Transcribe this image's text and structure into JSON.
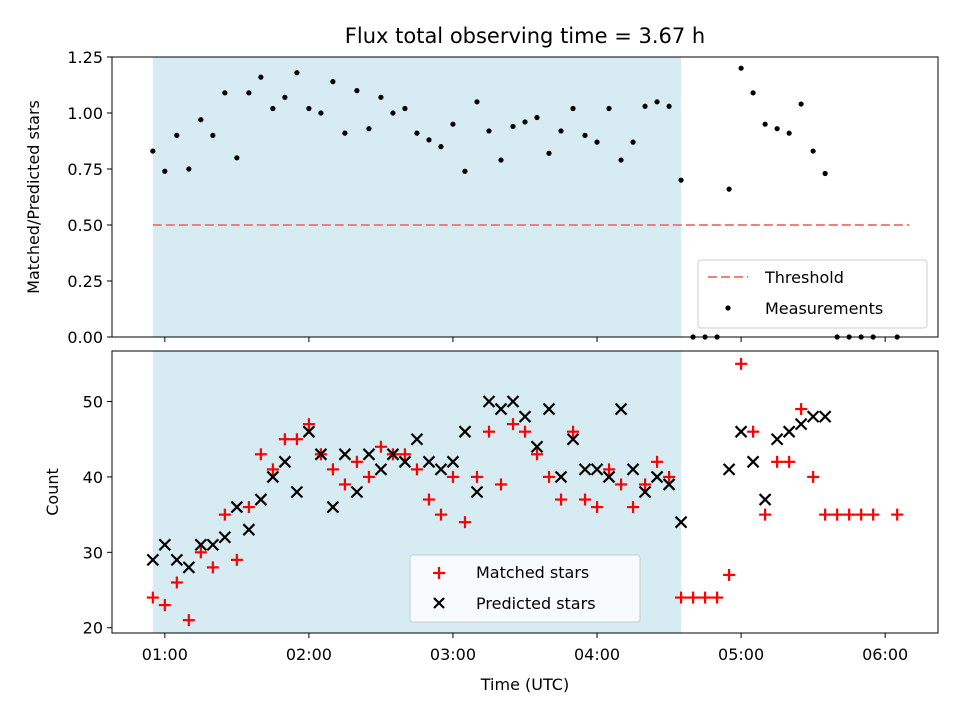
{
  "chart_data": {
    "type": "scatter",
    "title": "Flux total observing time = 3.67 h",
    "xlabel": "Time (UTC)",
    "x_ticks": [
      "01:00",
      "02:00",
      "03:00",
      "04:00",
      "05:00",
      "06:00"
    ],
    "x_range": [
      "00:38",
      "06:22"
    ],
    "highlight_span": [
      "00:55",
      "04:35"
    ],
    "highlight_color": "#add8e6",
    "panels": [
      {
        "ylabel": "Matched/Predicted stars",
        "ylim": [
          0,
          1.25
        ],
        "y_ticks": [
          "0.00",
          "0.25",
          "0.50",
          "0.75",
          "1.00",
          "1.25"
        ],
        "threshold": {
          "name": "Threshold",
          "value": 0.5,
          "x_from": "00:55",
          "x_to": "06:10",
          "color": "#f08080",
          "style": "dashed"
        },
        "legend": {
          "placement": "lower-right",
          "entries": [
            "Threshold",
            "Measurements"
          ]
        },
        "series": [
          {
            "name": "Measurements",
            "marker": "dot",
            "color": "#000000",
            "points": [
              [
                "00:55",
                0.83
              ],
              [
                "01:00",
                0.74
              ],
              [
                "01:05",
                0.9
              ],
              [
                "01:10",
                0.75
              ],
              [
                "01:15",
                0.97
              ],
              [
                "01:20",
                0.9
              ],
              [
                "01:25",
                1.09
              ],
              [
                "01:30",
                0.8
              ],
              [
                "01:35",
                1.09
              ],
              [
                "01:40",
                1.16
              ],
              [
                "01:45",
                1.02
              ],
              [
                "01:50",
                1.07
              ],
              [
                "01:55",
                1.18
              ],
              [
                "02:00",
                1.02
              ],
              [
                "02:05",
                1.0
              ],
              [
                "02:10",
                1.14
              ],
              [
                "02:15",
                0.91
              ],
              [
                "02:20",
                1.1
              ],
              [
                "02:25",
                0.93
              ],
              [
                "02:30",
                1.07
              ],
              [
                "02:35",
                1.0
              ],
              [
                "02:40",
                1.02
              ],
              [
                "02:45",
                0.91
              ],
              [
                "02:50",
                0.88
              ],
              [
                "02:55",
                0.85
              ],
              [
                "03:00",
                0.95
              ],
              [
                "03:05",
                0.74
              ],
              [
                "03:10",
                1.05
              ],
              [
                "03:15",
                0.92
              ],
              [
                "03:20",
                0.79
              ],
              [
                "03:25",
                0.94
              ],
              [
                "03:30",
                0.96
              ],
              [
                "03:35",
                0.98
              ],
              [
                "03:40",
                0.82
              ],
              [
                "03:45",
                0.92
              ],
              [
                "03:50",
                1.02
              ],
              [
                "03:55",
                0.9
              ],
              [
                "04:00",
                0.87
              ],
              [
                "04:05",
                1.02
              ],
              [
                "04:10",
                0.79
              ],
              [
                "04:15",
                0.87
              ],
              [
                "04:20",
                1.03
              ],
              [
                "04:25",
                1.05
              ],
              [
                "04:30",
                1.03
              ],
              [
                "04:35",
                0.7
              ],
              [
                "04:40",
                0.0
              ],
              [
                "04:45",
                0.0
              ],
              [
                "04:50",
                0.0
              ],
              [
                "04:55",
                0.66
              ],
              [
                "05:00",
                1.2
              ],
              [
                "05:05",
                1.09
              ],
              [
                "05:10",
                0.95
              ],
              [
                "05:15",
                0.93
              ],
              [
                "05:20",
                0.91
              ],
              [
                "05:25",
                1.04
              ],
              [
                "05:30",
                0.83
              ],
              [
                "05:35",
                0.73
              ],
              [
                "05:40",
                0.0
              ],
              [
                "05:45",
                0.0
              ],
              [
                "05:50",
                0.0
              ],
              [
                "05:55",
                0.0
              ],
              [
                "06:05",
                0.0
              ]
            ]
          }
        ]
      },
      {
        "ylabel": "Count",
        "ylim": [
          19.3,
          56.7
        ],
        "y_ticks": [
          "20",
          "30",
          "40",
          "50"
        ],
        "legend": {
          "placement": "lower-center",
          "entries": [
            "Matched stars",
            "Predicted stars"
          ]
        },
        "series": [
          {
            "name": "Matched stars",
            "marker": "plus",
            "color": "#ff0000",
            "points": [
              [
                "00:55",
                24
              ],
              [
                "01:00",
                23
              ],
              [
                "01:05",
                26
              ],
              [
                "01:10",
                21
              ],
              [
                "01:15",
                30
              ],
              [
                "01:20",
                28
              ],
              [
                "01:25",
                35
              ],
              [
                "01:30",
                29
              ],
              [
                "01:35",
                36
              ],
              [
                "01:40",
                43
              ],
              [
                "01:45",
                41
              ],
              [
                "01:50",
                45
              ],
              [
                "01:55",
                45
              ],
              [
                "02:00",
                47
              ],
              [
                "02:05",
                43
              ],
              [
                "02:10",
                41
              ],
              [
                "02:15",
                39
              ],
              [
                "02:20",
                42
              ],
              [
                "02:25",
                40
              ],
              [
                "02:30",
                44
              ],
              [
                "02:35",
                43
              ],
              [
                "02:40",
                43
              ],
              [
                "02:45",
                41
              ],
              [
                "02:50",
                37
              ],
              [
                "02:55",
                35
              ],
              [
                "03:00",
                40
              ],
              [
                "03:05",
                34
              ],
              [
                "03:10",
                40
              ],
              [
                "03:15",
                46
              ],
              [
                "03:20",
                39
              ],
              [
                "03:25",
                47
              ],
              [
                "03:30",
                46
              ],
              [
                "03:35",
                43
              ],
              [
                "03:40",
                40
              ],
              [
                "03:45",
                37
              ],
              [
                "03:50",
                46
              ],
              [
                "03:55",
                37
              ],
              [
                "04:00",
                36
              ],
              [
                "04:05",
                41
              ],
              [
                "04:10",
                39
              ],
              [
                "04:15",
                36
              ],
              [
                "04:20",
                39
              ],
              [
                "04:25",
                42
              ],
              [
                "04:30",
                40
              ],
              [
                "04:35",
                24
              ],
              [
                "04:40",
                24
              ],
              [
                "04:45",
                24
              ],
              [
                "04:50",
                24
              ],
              [
                "04:55",
                27
              ],
              [
                "05:00",
                55
              ],
              [
                "05:05",
                46
              ],
              [
                "05:10",
                35
              ],
              [
                "05:15",
                42
              ],
              [
                "05:20",
                42
              ],
              [
                "05:25",
                49
              ],
              [
                "05:30",
                40
              ],
              [
                "05:35",
                35
              ],
              [
                "05:40",
                35
              ],
              [
                "05:45",
                35
              ],
              [
                "05:50",
                35
              ],
              [
                "05:55",
                35
              ],
              [
                "06:05",
                35
              ]
            ]
          },
          {
            "name": "Predicted stars",
            "marker": "x",
            "color": "#000000",
            "points": [
              [
                "00:55",
                29
              ],
              [
                "01:00",
                31
              ],
              [
                "01:05",
                29
              ],
              [
                "01:10",
                28
              ],
              [
                "01:15",
                31
              ],
              [
                "01:20",
                31
              ],
              [
                "01:25",
                32
              ],
              [
                "01:30",
                36
              ],
              [
                "01:35",
                33
              ],
              [
                "01:40",
                37
              ],
              [
                "01:45",
                40
              ],
              [
                "01:50",
                42
              ],
              [
                "01:55",
                38
              ],
              [
                "02:00",
                46
              ],
              [
                "02:05",
                43
              ],
              [
                "02:10",
                36
              ],
              [
                "02:15",
                43
              ],
              [
                "02:20",
                38
              ],
              [
                "02:25",
                43
              ],
              [
                "02:30",
                41
              ],
              [
                "02:35",
                43
              ],
              [
                "02:40",
                42
              ],
              [
                "02:45",
                45
              ],
              [
                "02:50",
                42
              ],
              [
                "02:55",
                41
              ],
              [
                "03:00",
                42
              ],
              [
                "03:05",
                46
              ],
              [
                "03:10",
                38
              ],
              [
                "03:15",
                50
              ],
              [
                "03:20",
                49
              ],
              [
                "03:25",
                50
              ],
              [
                "03:30",
                48
              ],
              [
                "03:35",
                44
              ],
              [
                "03:40",
                49
              ],
              [
                "03:45",
                40
              ],
              [
                "03:50",
                45
              ],
              [
                "03:55",
                41
              ],
              [
                "04:00",
                41
              ],
              [
                "04:05",
                40
              ],
              [
                "04:10",
                49
              ],
              [
                "04:15",
                41
              ],
              [
                "04:20",
                38
              ],
              [
                "04:25",
                40
              ],
              [
                "04:30",
                39
              ],
              [
                "04:35",
                34
              ],
              [
                "04:55",
                41
              ],
              [
                "05:00",
                46
              ],
              [
                "05:05",
                42
              ],
              [
                "05:10",
                37
              ],
              [
                "05:15",
                45
              ],
              [
                "05:20",
                46
              ],
              [
                "05:25",
                47
              ],
              [
                "05:30",
                48
              ],
              [
                "05:35",
                48
              ]
            ]
          }
        ]
      }
    ]
  }
}
